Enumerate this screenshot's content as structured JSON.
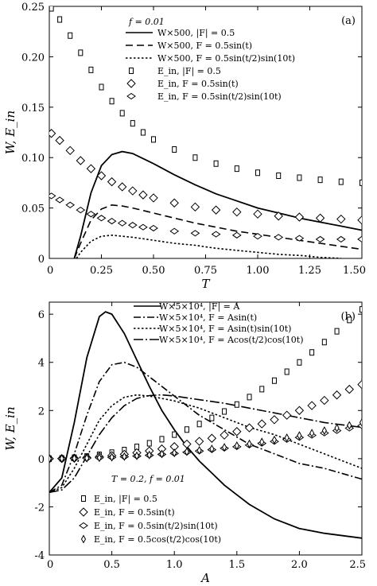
{
  "chart_data": [
    {
      "type": "line",
      "panel_label": "(a)",
      "annotation": "f = 0.01",
      "xlabel": "T",
      "ylabel": "W, E_in",
      "xlim": [
        0,
        1.5
      ],
      "ylim": [
        0,
        0.25
      ],
      "xticks": [
        "0",
        "0.25",
        "0.50",
        "0.75",
        "1.00",
        "1.25",
        "1.50"
      ],
      "yticks": [
        "0",
        "0.05",
        "0.10",
        "0.15",
        "0.20",
        "0.25"
      ],
      "legend_position": "top-right",
      "series": [
        {
          "name": "W×500, |F| = 0.5",
          "style": "solid",
          "x": [
            0.12,
            0.15,
            0.2,
            0.25,
            0.3,
            0.35,
            0.4,
            0.5,
            0.6,
            0.7,
            0.8,
            0.9,
            1.0,
            1.1,
            1.2,
            1.3,
            1.4,
            1.5
          ],
          "y": [
            0,
            0.022,
            0.065,
            0.092,
            0.103,
            0.106,
            0.104,
            0.094,
            0.083,
            0.073,
            0.064,
            0.057,
            0.05,
            0.045,
            0.04,
            0.036,
            0.032,
            0.028
          ]
        },
        {
          "name": "W×500, F = 0.5sin(t)",
          "style": "dashed",
          "x": [
            0.12,
            0.15,
            0.2,
            0.25,
            0.3,
            0.35,
            0.4,
            0.5,
            0.6,
            0.7,
            0.8,
            0.9,
            1.0,
            1.1,
            1.2,
            1.3,
            1.4,
            1.5
          ],
          "y": [
            0,
            0.015,
            0.038,
            0.049,
            0.053,
            0.052,
            0.05,
            0.045,
            0.04,
            0.035,
            0.031,
            0.027,
            0.024,
            0.021,
            0.018,
            0.015,
            0.012,
            0.009
          ]
        },
        {
          "name": "W×500, F = 0.5sin(t/2)sin(10t)",
          "style": "dotted",
          "x": [
            0.13,
            0.15,
            0.2,
            0.25,
            0.3,
            0.35,
            0.4,
            0.5,
            0.6,
            0.7,
            0.8,
            0.9,
            1.0,
            1.1,
            1.2,
            1.3,
            1.4
          ],
          "y": [
            0,
            0.006,
            0.017,
            0.022,
            0.023,
            0.022,
            0.021,
            0.018,
            0.015,
            0.013,
            0.01,
            0.008,
            0.006,
            0.004,
            0.003,
            0.001,
            0
          ]
        },
        {
          "name": "E_in, |F| = 0.5",
          "marker": "square",
          "x": [
            0.01,
            0.05,
            0.1,
            0.15,
            0.2,
            0.25,
            0.3,
            0.35,
            0.4,
            0.45,
            0.5,
            0.6,
            0.7,
            0.8,
            0.9,
            1.0,
            1.1,
            1.2,
            1.3,
            1.4,
            1.5
          ],
          "y": [
            0.248,
            0.237,
            0.221,
            0.204,
            0.187,
            0.17,
            0.156,
            0.144,
            0.134,
            0.125,
            0.118,
            0.108,
            0.1,
            0.094,
            0.089,
            0.085,
            0.082,
            0.08,
            0.078,
            0.076,
            0.075
          ]
        },
        {
          "name": "E_in, F = 0.5sin(t)",
          "marker": "diamond",
          "x": [
            0.01,
            0.05,
            0.1,
            0.15,
            0.2,
            0.25,
            0.3,
            0.35,
            0.4,
            0.45,
            0.5,
            0.6,
            0.7,
            0.8,
            0.9,
            1.0,
            1.1,
            1.2,
            1.3,
            1.4,
            1.5
          ],
          "y": [
            0.124,
            0.117,
            0.107,
            0.097,
            0.089,
            0.082,
            0.076,
            0.071,
            0.067,
            0.063,
            0.06,
            0.055,
            0.051,
            0.048,
            0.046,
            0.044,
            0.042,
            0.041,
            0.04,
            0.039,
            0.038
          ]
        },
        {
          "name": "E_in, F = 0.5sin(t/2)sin(10t)",
          "marker": "bowtie",
          "x": [
            0.01,
            0.05,
            0.1,
            0.15,
            0.2,
            0.25,
            0.3,
            0.35,
            0.4,
            0.45,
            0.5,
            0.6,
            0.7,
            0.8,
            0.9,
            1.0,
            1.1,
            1.2,
            1.3,
            1.4,
            1.5
          ],
          "y": [
            0.062,
            0.058,
            0.053,
            0.048,
            0.044,
            0.04,
            0.037,
            0.035,
            0.033,
            0.031,
            0.03,
            0.027,
            0.025,
            0.024,
            0.023,
            0.022,
            0.021,
            0.02,
            0.019,
            0.019,
            0.019
          ]
        }
      ]
    },
    {
      "type": "line",
      "panel_label": "(b)",
      "annotation": "T = 0.2, f = 0.01",
      "xlabel": "A",
      "ylabel": "W, E_in",
      "xlim": [
        0,
        2.5
      ],
      "ylim": [
        -4,
        6.5
      ],
      "xticks": [
        "0",
        "0.5",
        "1.0",
        "1.5",
        "2.0",
        "2.5"
      ],
      "yticks": [
        "-4",
        "-2",
        "0",
        "2",
        "4",
        "6"
      ],
      "legend_position": "top-right",
      "series": [
        {
          "name": "W×5×10⁴, |F| = A",
          "style": "solid",
          "x": [
            0,
            0.1,
            0.2,
            0.3,
            0.4,
            0.45,
            0.5,
            0.6,
            0.7,
            0.8,
            0.9,
            1.0,
            1.1,
            1.2,
            1.3,
            1.4,
            1.5,
            1.6,
            1.8,
            2.0,
            2.2,
            2.5
          ],
          "y": [
            -1.4,
            -0.8,
            1.5,
            4.2,
            5.9,
            6.1,
            6.0,
            5.2,
            4.1,
            3.0,
            2.0,
            1.2,
            0.5,
            -0.1,
            -0.6,
            -1.1,
            -1.5,
            -1.9,
            -2.5,
            -2.9,
            -3.1,
            -3.3
          ]
        },
        {
          "name": "W×5×10⁴, F = Asin(t)",
          "style": "dashdot",
          "x": [
            0,
            0.1,
            0.2,
            0.3,
            0.4,
            0.5,
            0.6,
            0.7,
            0.8,
            0.9,
            1.0,
            1.2,
            1.4,
            1.6,
            1.8,
            2.0,
            2.2,
            2.5
          ],
          "y": [
            -1.4,
            -1.1,
            0.2,
            1.8,
            3.2,
            3.9,
            4.0,
            3.8,
            3.4,
            3.0,
            2.6,
            1.8,
            1.2,
            0.6,
            0.2,
            -0.2,
            -0.4,
            -0.85
          ]
        },
        {
          "name": "W×5×10⁴, F = Asin(t)sin(10t)",
          "style": "dotted",
          "x": [
            0,
            0.1,
            0.2,
            0.3,
            0.4,
            0.5,
            0.6,
            0.7,
            0.8,
            0.9,
            1.0,
            1.2,
            1.4,
            1.6,
            1.8,
            2.0,
            2.2,
            2.5
          ],
          "y": [
            -1.4,
            -1.2,
            -0.4,
            0.6,
            1.6,
            2.2,
            2.55,
            2.65,
            2.6,
            2.5,
            2.4,
            2.1,
            1.7,
            1.3,
            1.0,
            0.6,
            0.2,
            -0.4
          ]
        },
        {
          "name": "W×5×10⁴, F = Acos(t/2)cos(10t)",
          "style": "dashdotlong",
          "x": [
            0,
            0.1,
            0.2,
            0.3,
            0.4,
            0.5,
            0.6,
            0.7,
            0.8,
            0.9,
            1.0,
            1.2,
            1.4,
            1.6,
            1.8,
            2.0,
            2.2,
            2.5
          ],
          "y": [
            -1.4,
            -1.3,
            -0.8,
            0.1,
            1.0,
            1.7,
            2.2,
            2.5,
            2.62,
            2.65,
            2.6,
            2.45,
            2.3,
            2.1,
            1.9,
            1.7,
            1.5,
            1.3
          ]
        },
        {
          "name": "E_in, |F| = 0.5",
          "marker": "square",
          "x": [
            0,
            0.1,
            0.2,
            0.3,
            0.4,
            0.5,
            0.6,
            0.7,
            0.8,
            0.9,
            1.0,
            1.1,
            1.2,
            1.3,
            1.4,
            1.5,
            1.6,
            1.7,
            1.8,
            1.9,
            2.0,
            2.1,
            2.2,
            2.3,
            2.4,
            2.5
          ],
          "y": [
            0.0,
            0.01,
            0.04,
            0.09,
            0.16,
            0.25,
            0.36,
            0.49,
            0.64,
            0.81,
            1.0,
            1.21,
            1.44,
            1.69,
            1.96,
            2.25,
            2.56,
            2.89,
            3.24,
            3.61,
            4.0,
            4.41,
            4.84,
            5.29,
            5.76,
            6.2
          ]
        },
        {
          "name": "E_in, F = 0.5sin(t)",
          "marker": "diamond",
          "x": [
            0,
            0.1,
            0.2,
            0.3,
            0.4,
            0.5,
            0.6,
            0.7,
            0.8,
            0.9,
            1.0,
            1.1,
            1.2,
            1.3,
            1.4,
            1.5,
            1.6,
            1.7,
            1.8,
            1.9,
            2.0,
            2.1,
            2.2,
            2.3,
            2.4,
            2.5
          ],
          "y": [
            0.0,
            0.005,
            0.02,
            0.045,
            0.08,
            0.125,
            0.18,
            0.245,
            0.32,
            0.405,
            0.5,
            0.605,
            0.72,
            0.845,
            0.98,
            1.125,
            1.28,
            1.445,
            1.62,
            1.805,
            2.0,
            2.205,
            2.42,
            2.645,
            2.88,
            3.08
          ]
        },
        {
          "name": "E_in, F = 0.5sin(t/2)sin(10t)",
          "marker": "bowtie",
          "x": [
            0,
            0.1,
            0.2,
            0.3,
            0.4,
            0.5,
            0.6,
            0.7,
            0.8,
            0.9,
            1.0,
            1.1,
            1.2,
            1.3,
            1.4,
            1.5,
            1.6,
            1.7,
            1.8,
            1.9,
            2.0,
            2.1,
            2.2,
            2.3,
            2.4,
            2.5
          ],
          "y": [
            0.0,
            0.002,
            0.009,
            0.02,
            0.035,
            0.055,
            0.079,
            0.108,
            0.141,
            0.178,
            0.22,
            0.266,
            0.317,
            0.372,
            0.431,
            0.495,
            0.563,
            0.636,
            0.713,
            0.794,
            0.88,
            0.97,
            1.065,
            1.164,
            1.267,
            1.37
          ]
        },
        {
          "name": "E_in, F = 0.5cos(t/2)cos(10t)",
          "marker": "thindiamond",
          "x": [
            0,
            0.1,
            0.2,
            0.3,
            0.4,
            0.5,
            0.6,
            0.7,
            0.8,
            0.9,
            1.0,
            1.1,
            1.2,
            1.3,
            1.4,
            1.5,
            1.6,
            1.7,
            1.8,
            1.9,
            2.0,
            2.1,
            2.2,
            2.3,
            2.4,
            2.5
          ],
          "y": [
            0.0,
            0.0024,
            0.0096,
            0.022,
            0.038,
            0.06,
            0.086,
            0.118,
            0.154,
            0.194,
            0.24,
            0.29,
            0.346,
            0.406,
            0.47,
            0.54,
            0.614,
            0.694,
            0.778,
            0.866,
            0.96,
            1.058,
            1.162,
            1.27,
            1.382,
            1.5
          ]
        }
      ]
    }
  ]
}
